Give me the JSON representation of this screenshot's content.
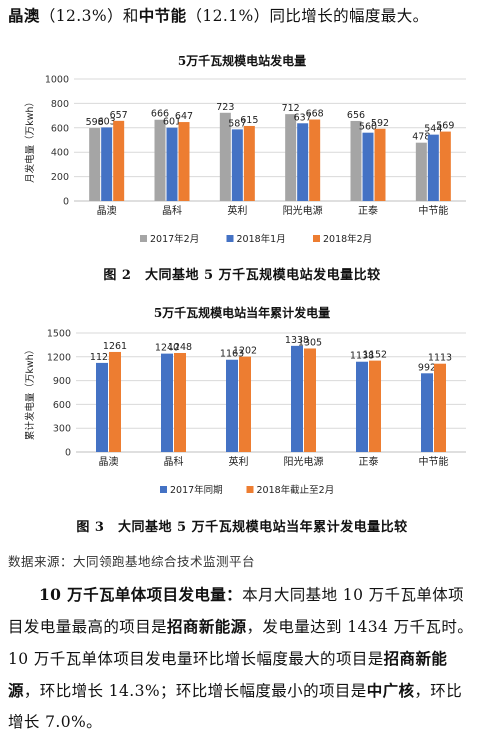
{
  "intro": {
    "b1": "晶澳",
    "t1": "（12.3%）和",
    "b2": "中节能",
    "t2": "（12.1%）同比增长的幅度最大。"
  },
  "fig2": {
    "title": "5万千瓦规模电站发电量",
    "caption": "图 2　大同基地 5 万千瓦规模电站发电量比较",
    "chart_data": {
      "type": "bar",
      "categories": [
        "晶澳",
        "晶科",
        "英利",
        "阳光电源",
        "正泰",
        "中节能"
      ],
      "series": [
        {
          "name": "2017年2月",
          "color": "#a5a5a5",
          "values": [
            598,
            666,
            723,
            712,
            656,
            478
          ]
        },
        {
          "name": "2018年1月",
          "color": "#4472c4",
          "values": [
            603,
            601,
            587,
            637,
            560,
            544
          ]
        },
        {
          "name": "2018年2月",
          "color": "#ed7d31",
          "values": [
            657,
            647,
            615,
            668,
            592,
            569
          ]
        }
      ],
      "ylabel": "月发电量（万kwh）",
      "ylim": [
        0,
        1000
      ],
      "yticks": [
        "0",
        "200",
        "400",
        "600",
        "800",
        "1000"
      ],
      "grid": true,
      "legend": "bottom"
    }
  },
  "fig3": {
    "title": "5万千瓦规模电站当年累计发电量",
    "caption": "图 3　大同基地 5 万千瓦规模电站当年累计发电量比较",
    "chart_data": {
      "type": "bar",
      "categories": [
        "晶澳",
        "晶科",
        "英利",
        "阳光电源",
        "正泰",
        "中节能"
      ],
      "series": [
        {
          "name": "2017年同期",
          "color": "#4472c4",
          "values": [
            1123,
            1240,
            1163,
            1338,
            1138,
            992
          ]
        },
        {
          "name": "2018年截止至2月",
          "color": "#ed7d31",
          "values": [
            1261,
            1248,
            1202,
            1305,
            1152,
            1113
          ]
        }
      ],
      "ylabel": "累计发电量（万kwh）",
      "ylim": [
        0,
        1500
      ],
      "yticks": [
        "0",
        "300",
        "600",
        "900",
        "1200",
        "1500"
      ],
      "grid": true,
      "legend": "bottom"
    }
  },
  "source": "数据来源：大同领跑基地综合技术监测平台",
  "para": {
    "b1": "10 万千瓦单体项目发电量：",
    "t1": "本月大同基地 10 万千瓦单体项目发电量最高的项目是",
    "b2": "招商新能源",
    "t2": "，发电量达到 1434 万千瓦时。10 万千瓦单体项目发电量环比增长幅度最大的项目是",
    "b3": "招商新能源",
    "t3": "，环比增长 14.3%；环比增长幅度最小的项目是",
    "b4": "中广核",
    "t4": "，环比增长 7.0%。"
  }
}
